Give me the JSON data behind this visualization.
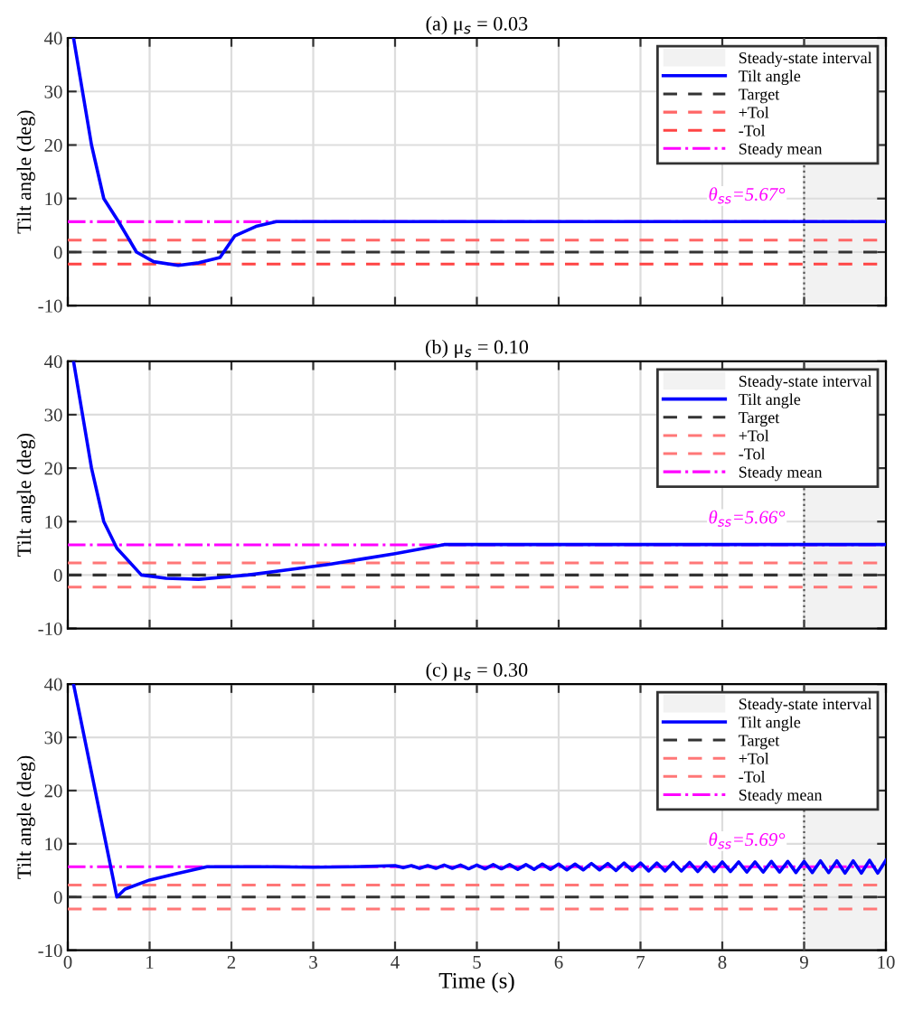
{
  "chart_data": [
    {
      "type": "line",
      "title": "(a) μ$_{s}$ = 0.03",
      "ylabel": "Tilt angle (deg)",
      "xlim": [
        0,
        10
      ],
      "xticks": [
        0,
        1,
        2,
        3,
        4,
        5,
        6,
        7,
        8,
        9,
        10
      ],
      "ylim": [
        -10,
        40
      ],
      "yticks": [
        -10,
        0,
        10,
        20,
        30,
        40
      ],
      "grid": true,
      "legend": "top right",
      "tick_labels": "y",
      "series": [
        {
          "name": "Tilt angle",
          "color": "#0000ff",
          "x": [
            0.07,
            0.18,
            0.29,
            0.44,
            0.62,
            0.84,
            1.05,
            1.35,
            1.6,
            1.86,
            2.04,
            2.3,
            2.55,
            3.0,
            4.0,
            5.0,
            6.0,
            7.0,
            8.0,
            9.0,
            10.0
          ],
          "values": [
            40,
            30,
            20,
            10,
            5.7,
            0,
            -1.8,
            -2.5,
            -2.0,
            -1.0,
            3.0,
            4.8,
            5.7,
            5.7,
            5.7,
            5.7,
            5.7,
            5.7,
            5.7,
            5.7,
            5.7
          ]
        }
      ],
      "ref_lines": [
        {
          "axis": "y",
          "value": 0,
          "label": "Target",
          "color": "#333333",
          "line_style": "dashed"
        },
        {
          "axis": "y",
          "value": 2.25,
          "label": "+Tol",
          "color": "#ff6666",
          "line_style": "dashed"
        },
        {
          "axis": "y",
          "value": -2.25,
          "label": "-Tol",
          "color": "#ff4444",
          "line_style": "dashed"
        },
        {
          "axis": "y",
          "value": 5.67,
          "label": "Steady mean",
          "color": "#ff00ff",
          "line_style": "dashdot"
        },
        {
          "axis": "x",
          "value": 9,
          "color": "#555555",
          "line_style": "dotted"
        }
      ],
      "bands": [
        {
          "axis": "x",
          "from": 9,
          "to": 10,
          "label": "Steady-state interval",
          "color": "#f2f2f2"
        }
      ],
      "annotations": [
        "θ$_{ss}$=5.67°"
      ]
    },
    {
      "type": "line",
      "title": "(b) μ$_{s}$ = 0.10",
      "ylabel": "Tilt angle (deg)",
      "xlim": [
        0,
        10
      ],
      "xticks": [
        0,
        1,
        2,
        3,
        4,
        5,
        6,
        7,
        8,
        9,
        10
      ],
      "ylim": [
        -10,
        40
      ],
      "yticks": [
        -10,
        0,
        10,
        20,
        30,
        40
      ],
      "grid": true,
      "legend": "top right",
      "tick_labels": "y",
      "series": [
        {
          "name": "Tilt angle",
          "color": "#0000ff",
          "x": [
            0.07,
            0.18,
            0.29,
            0.44,
            0.6,
            0.9,
            1.2,
            1.6,
            2.2,
            2.7,
            3.2,
            3.6,
            4.0,
            4.6,
            5.0,
            6.0,
            7.0,
            8.0,
            9.0,
            10.0
          ],
          "values": [
            40,
            30,
            20,
            10,
            5,
            0,
            -0.6,
            -0.8,
            0,
            1.0,
            2.0,
            3.0,
            4.0,
            5.7,
            5.7,
            5.7,
            5.7,
            5.7,
            5.7,
            5.7
          ]
        }
      ],
      "ref_lines": [
        {
          "axis": "y",
          "value": 0,
          "label": "Target",
          "color": "#333333",
          "line_style": "dashed"
        },
        {
          "axis": "y",
          "value": 2.25,
          "label": "+Tol",
          "color": "#ff7777",
          "line_style": "dashed"
        },
        {
          "axis": "y",
          "value": -2.25,
          "label": "-Tol",
          "color": "#ff7777",
          "line_style": "dashed"
        },
        {
          "axis": "y",
          "value": 5.66,
          "label": "Steady mean",
          "color": "#ff00ff",
          "line_style": "dashdot"
        },
        {
          "axis": "x",
          "value": 9,
          "color": "#555555",
          "line_style": "dotted"
        }
      ],
      "bands": [
        {
          "axis": "x",
          "from": 9,
          "to": 10,
          "label": "Steady-state interval",
          "color": "#f2f2f2"
        }
      ],
      "annotations": [
        "θ$_{ss}$=5.66°"
      ]
    },
    {
      "type": "line",
      "title": "(c) μ$_{s}$ = 0.30",
      "xlabel": "Time (s)",
      "ylabel": "Tilt angle (deg)",
      "xlim": [
        0,
        10
      ],
      "xticks": [
        0,
        1,
        2,
        3,
        4,
        5,
        6,
        7,
        8,
        9,
        10
      ],
      "ylim": [
        -10,
        40
      ],
      "yticks": [
        -10,
        0,
        10,
        20,
        30,
        40
      ],
      "grid": true,
      "legend": "top right",
      "series": [
        {
          "name": "Tilt angle",
          "color": "#0000ff",
          "x": [
            0.07,
            0.6,
            0.7,
            1.0,
            1.3,
            1.7,
            2.5,
            3.0,
            3.5,
            4.0,
            4.1,
            4.2,
            4.3,
            4.4,
            4.5,
            4.6,
            4.7,
            4.8,
            4.9,
            5.0,
            5.1,
            5.2,
            5.3,
            5.4,
            5.5,
            5.6,
            5.7,
            5.8,
            5.9,
            6.0,
            6.1,
            6.2,
            6.3,
            6.4,
            6.5,
            6.6,
            6.7,
            6.8,
            6.9,
            7.0,
            7.1,
            7.2,
            7.3,
            7.4,
            7.5,
            7.6,
            7.7,
            7.8,
            7.9,
            8.0,
            8.1,
            8.2,
            8.3,
            8.4,
            8.5,
            8.6,
            8.7,
            8.8,
            8.9,
            9.0,
            9.1,
            9.2,
            9.3,
            9.4,
            9.5,
            9.6,
            9.7,
            9.8,
            9.9,
            10.0
          ],
          "values": [
            40,
            0,
            1.5,
            3.2,
            4.3,
            5.7,
            5.7,
            5.6,
            5.7,
            5.9,
            5.5,
            5.9,
            5.4,
            5.9,
            5.4,
            6.0,
            5.4,
            6.0,
            5.3,
            6.0,
            5.3,
            6.1,
            5.3,
            6.1,
            5.2,
            6.1,
            5.2,
            6.2,
            5.2,
            6.2,
            5.1,
            6.2,
            5.1,
            6.3,
            5.1,
            6.3,
            5.0,
            6.4,
            5.0,
            6.4,
            4.9,
            6.4,
            4.9,
            6.5,
            4.9,
            6.5,
            4.8,
            6.5,
            4.8,
            6.6,
            4.8,
            6.6,
            4.7,
            6.6,
            4.7,
            6.7,
            4.7,
            6.7,
            4.6,
            6.7,
            4.6,
            6.8,
            4.6,
            6.8,
            4.5,
            6.8,
            4.5,
            6.9,
            4.5,
            6.9
          ]
        }
      ],
      "ref_lines": [
        {
          "axis": "y",
          "value": 0,
          "label": "Target",
          "color": "#333333",
          "line_style": "dashed"
        },
        {
          "axis": "y",
          "value": 2.25,
          "label": "+Tol",
          "color": "#ff7777",
          "line_style": "dashed"
        },
        {
          "axis": "y",
          "value": -2.25,
          "label": "-Tol",
          "color": "#ff7777",
          "line_style": "dashed"
        },
        {
          "axis": "y",
          "value": 5.69,
          "label": "Steady mean",
          "color": "#ff00ff",
          "line_style": "dashdot"
        },
        {
          "axis": "x",
          "value": 9,
          "color": "#555555",
          "line_style": "dotted"
        }
      ],
      "bands": [
        {
          "axis": "x",
          "from": 9,
          "to": 10,
          "label": "Steady-state interval",
          "color": "#f2f2f2"
        }
      ],
      "annotations": [
        "θ$_{ss}$=5.69°"
      ]
    }
  ]
}
